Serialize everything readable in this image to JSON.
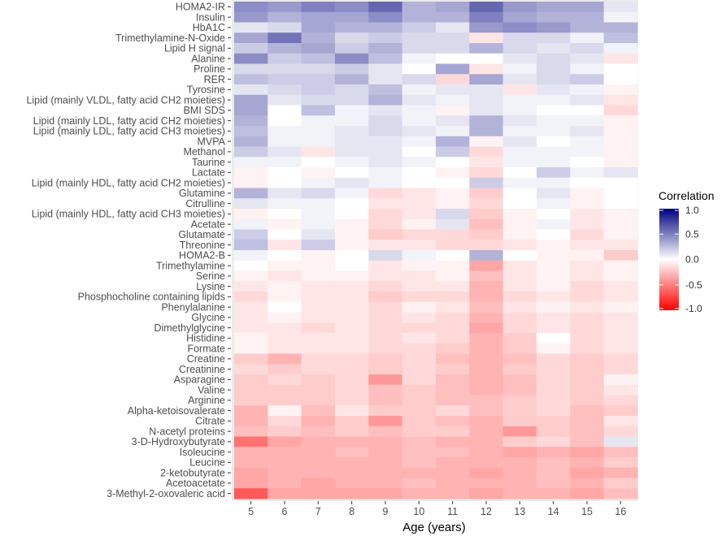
{
  "chart_data": {
    "type": "heatmap",
    "xlabel": "Age (years)",
    "ylabel": "",
    "x": [
      "5",
      "6",
      "7",
      "8",
      "9",
      "10",
      "11",
      "12",
      "13",
      "14",
      "15",
      "16"
    ],
    "y": [
      "HOMA2-IR",
      "Insulin",
      "HbA1C",
      "Trimethylamine-N-Oxide",
      "Lipid H signal",
      "Alanine",
      "Proline",
      "RER",
      "Tyrosine",
      "Lipid (mainly VLDL, fatty acid CH2 moieties)",
      "BMI SDS",
      "Lipid (mainly LDL, fatty acid CH2 moieties)",
      "Lipid (mainly LDL, fatty acid CH3 moieties)",
      "MVPA",
      "Methanol",
      "Taurine",
      "Lactate",
      "Lipid (mainly HDL, fatty acid CH2 moieties)",
      "Glutamine",
      "Citrulline",
      "Lipid (mainly HDL, fatty acid CH3 moieties)",
      "Acetate",
      "Glutamate",
      "Threonine",
      "HOMA2-B",
      "Trimethylamine",
      "Serine",
      "Lysine",
      "Phosphocholine containing lipids",
      "Phenylalanine",
      "Glycine",
      "Dimethylglycine",
      "Histidine",
      "Formate",
      "Creatine",
      "Creatinine",
      "Asparagine",
      "Valine",
      "Arginine",
      "Alpha-ketoisovalerate",
      "Citrate",
      "N-acetyl proteins",
      "3-D-Hydroxybutyrate",
      "Isoleucine",
      "Leucine",
      "2-ketobutyrate",
      "Acetoacetate",
      "3-Methyl-2-oxovaleric acid"
    ],
    "values": [
      [
        0.45,
        0.4,
        0.5,
        0.45,
        0.6,
        0.3,
        0.35,
        0.6,
        0.4,
        0.35,
        0.35,
        0.1
      ],
      [
        0.4,
        0.3,
        0.35,
        0.35,
        0.45,
        0.3,
        0.3,
        0.5,
        0.35,
        0.3,
        0.3,
        0.05
      ],
      [
        0.1,
        0.15,
        0.35,
        0.3,
        0.3,
        0.2,
        0.1,
        0.4,
        0.45,
        0.4,
        0.3,
        0.3
      ],
      [
        0.35,
        0.55,
        0.3,
        0.15,
        0.2,
        0.15,
        0.15,
        -0.1,
        0.15,
        0.15,
        0.05,
        0.25
      ],
      [
        0.2,
        0.3,
        0.35,
        0.2,
        0.3,
        0.15,
        0.15,
        0.3,
        0.15,
        0.1,
        0.15,
        0.05
      ],
      [
        0.45,
        0.2,
        0.25,
        0.45,
        0.25,
        0.05,
        0.0,
        0.0,
        0.1,
        0.15,
        0.1,
        -0.1
      ],
      [
        0.15,
        0.15,
        0.15,
        0.2,
        0.1,
        0.0,
        0.35,
        -0.1,
        0.05,
        0.15,
        0.05,
        0.0
      ],
      [
        0.25,
        0.2,
        0.2,
        0.3,
        0.1,
        0.15,
        -0.15,
        0.35,
        0.1,
        0.15,
        0.2,
        0.0
      ],
      [
        0.1,
        0.15,
        0.2,
        0.15,
        0.25,
        0.05,
        0.1,
        0.1,
        -0.1,
        0.1,
        0.05,
        -0.05
      ],
      [
        0.35,
        0.1,
        0.15,
        0.15,
        0.3,
        0.1,
        0.05,
        0.1,
        0.05,
        0.05,
        0.1,
        -0.1
      ],
      [
        0.35,
        0.0,
        0.25,
        0.05,
        0.1,
        0.05,
        -0.05,
        0.1,
        0.05,
        0.0,
        0.0,
        -0.15
      ],
      [
        0.3,
        0.0,
        0.05,
        0.05,
        0.15,
        0.05,
        0.1,
        0.3,
        0.1,
        0.05,
        0.05,
        -0.05
      ],
      [
        0.25,
        0.05,
        0.05,
        0.1,
        0.15,
        0.1,
        0.05,
        0.3,
        0.05,
        0.05,
        0.1,
        -0.05
      ],
      [
        0.3,
        0.05,
        0.05,
        0.1,
        0.1,
        0.05,
        0.3,
        -0.05,
        0.1,
        0.0,
        0.05,
        -0.05
      ],
      [
        0.2,
        0.1,
        -0.1,
        0.1,
        0.1,
        0.0,
        0.2,
        -0.15,
        0.05,
        0.05,
        0.05,
        -0.05
      ],
      [
        0.05,
        0.05,
        0.0,
        0.05,
        0.1,
        0.05,
        0.0,
        -0.1,
        0.05,
        0.05,
        0.0,
        -0.05
      ],
      [
        -0.05,
        0.0,
        -0.05,
        0.0,
        0.05,
        0.0,
        -0.05,
        -0.15,
        0.0,
        0.2,
        0.05,
        0.1
      ],
      [
        -0.05,
        0.0,
        0.05,
        0.1,
        0.05,
        0.0,
        0.0,
        0.2,
        0.05,
        0.05,
        0.0,
        0.0
      ],
      [
        0.3,
        0.1,
        0.15,
        0.05,
        -0.15,
        -0.1,
        -0.05,
        -0.2,
        0.0,
        0.1,
        -0.05,
        0.0
      ],
      [
        0.1,
        0.05,
        0.05,
        0.0,
        -0.1,
        -0.1,
        -0.05,
        -0.15,
        0.0,
        0.05,
        -0.05,
        0.0
      ],
      [
        -0.05,
        0.0,
        0.05,
        0.0,
        -0.15,
        -0.1,
        0.15,
        -0.2,
        -0.05,
        0.0,
        -0.1,
        -0.05
      ],
      [
        0.05,
        -0.05,
        0.05,
        -0.05,
        -0.15,
        -0.05,
        0.1,
        -0.25,
        -0.05,
        0.05,
        -0.1,
        -0.05
      ],
      [
        0.2,
        0.0,
        0.1,
        -0.05,
        -0.2,
        -0.15,
        -0.15,
        -0.2,
        -0.05,
        0.0,
        -0.15,
        -0.05
      ],
      [
        0.25,
        -0.1,
        0.2,
        -0.05,
        -0.1,
        -0.1,
        -0.15,
        -0.15,
        -0.1,
        -0.05,
        -0.1,
        -0.1
      ],
      [
        0.05,
        0.0,
        -0.05,
        0.0,
        0.15,
        0.05,
        0.0,
        0.3,
        0.0,
        -0.05,
        -0.05,
        -0.2
      ],
      [
        0.0,
        -0.05,
        -0.05,
        0.0,
        -0.1,
        -0.05,
        -0.05,
        -0.35,
        -0.1,
        -0.05,
        -0.1,
        -0.05
      ],
      [
        -0.05,
        -0.1,
        -0.05,
        -0.05,
        -0.1,
        -0.1,
        -0.05,
        -0.25,
        -0.1,
        -0.05,
        -0.1,
        -0.05
      ],
      [
        -0.1,
        -0.05,
        -0.1,
        -0.1,
        -0.15,
        -0.1,
        -0.1,
        -0.3,
        -0.1,
        -0.05,
        -0.15,
        -0.1
      ],
      [
        -0.15,
        -0.05,
        -0.1,
        -0.1,
        -0.2,
        -0.15,
        -0.15,
        -0.3,
        -0.15,
        -0.1,
        -0.15,
        -0.1
      ],
      [
        -0.1,
        0.0,
        -0.1,
        -0.1,
        -0.15,
        -0.05,
        -0.1,
        -0.25,
        -0.1,
        -0.05,
        -0.1,
        -0.05
      ],
      [
        -0.1,
        -0.05,
        -0.1,
        -0.1,
        -0.15,
        -0.1,
        -0.15,
        -0.3,
        -0.15,
        -0.1,
        -0.15,
        -0.1
      ],
      [
        -0.1,
        -0.1,
        -0.15,
        -0.1,
        -0.15,
        -0.15,
        -0.15,
        -0.35,
        -0.15,
        -0.1,
        -0.15,
        -0.1
      ],
      [
        -0.05,
        -0.1,
        -0.1,
        -0.1,
        -0.15,
        -0.1,
        -0.15,
        -0.3,
        -0.2,
        0.0,
        -0.15,
        -0.1
      ],
      [
        -0.05,
        -0.1,
        -0.1,
        -0.1,
        -0.15,
        -0.15,
        -0.2,
        -0.3,
        -0.2,
        -0.05,
        -0.15,
        -0.1
      ],
      [
        -0.2,
        -0.3,
        -0.15,
        -0.15,
        -0.2,
        -0.15,
        -0.25,
        -0.3,
        -0.25,
        -0.15,
        -0.2,
        -0.15
      ],
      [
        -0.15,
        -0.2,
        -0.15,
        -0.15,
        -0.2,
        -0.15,
        -0.2,
        -0.3,
        -0.2,
        -0.15,
        -0.2,
        -0.15
      ],
      [
        -0.2,
        -0.15,
        -0.2,
        -0.15,
        -0.4,
        -0.15,
        -0.25,
        -0.3,
        -0.25,
        -0.15,
        -0.2,
        -0.05
      ],
      [
        -0.2,
        -0.2,
        -0.2,
        -0.15,
        -0.25,
        -0.2,
        -0.25,
        -0.3,
        -0.25,
        -0.15,
        -0.2,
        -0.1
      ],
      [
        -0.2,
        -0.2,
        -0.2,
        -0.15,
        -0.25,
        -0.2,
        -0.25,
        -0.25,
        -0.2,
        -0.15,
        -0.2,
        -0.15
      ],
      [
        -0.3,
        -0.05,
        -0.25,
        -0.1,
        -0.2,
        -0.2,
        -0.15,
        -0.25,
        -0.2,
        -0.15,
        -0.25,
        -0.2
      ],
      [
        -0.3,
        -0.15,
        -0.3,
        -0.2,
        -0.4,
        -0.2,
        -0.25,
        -0.3,
        -0.2,
        -0.2,
        -0.25,
        -0.1
      ],
      [
        -0.25,
        -0.2,
        -0.25,
        -0.2,
        -0.25,
        -0.2,
        -0.2,
        -0.3,
        -0.4,
        -0.2,
        -0.25,
        -0.15
      ],
      [
        -0.55,
        -0.35,
        -0.3,
        -0.3,
        -0.3,
        -0.25,
        -0.3,
        -0.3,
        -0.2,
        -0.15,
        -0.25,
        0.1
      ],
      [
        -0.3,
        -0.3,
        -0.3,
        -0.25,
        -0.3,
        -0.25,
        -0.25,
        -0.3,
        -0.35,
        -0.3,
        -0.35,
        -0.25
      ],
      [
        -0.3,
        -0.3,
        -0.3,
        -0.3,
        -0.3,
        -0.25,
        -0.3,
        -0.3,
        -0.3,
        -0.25,
        -0.3,
        -0.2
      ],
      [
        -0.35,
        -0.3,
        -0.3,
        -0.3,
        -0.3,
        -0.3,
        -0.3,
        -0.35,
        -0.3,
        -0.25,
        -0.35,
        -0.3
      ],
      [
        -0.35,
        -0.3,
        -0.35,
        -0.3,
        -0.3,
        -0.25,
        -0.3,
        -0.3,
        -0.3,
        -0.25,
        -0.3,
        -0.2
      ],
      [
        -0.65,
        -0.35,
        -0.35,
        -0.35,
        -0.35,
        -0.3,
        -0.3,
        -0.35,
        -0.3,
        -0.3,
        -0.35,
        -0.25
      ]
    ],
    "legend": {
      "title": "Correlation",
      "ticks": [
        "1.0",
        "0.5",
        "0.0",
        "-0.5",
        "-1.0"
      ],
      "range": [
        -1.0,
        1.0
      ],
      "low_color": "#ff0000",
      "mid_color": "#ffffff",
      "high_color": "#000080"
    }
  }
}
